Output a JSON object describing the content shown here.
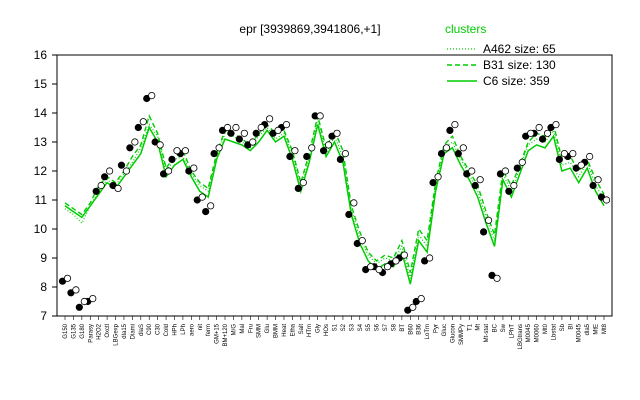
{
  "chart_data": {
    "type": "line",
    "title": "epr [3939869,3941806,+1]",
    "xlabel": "",
    "ylabel": "",
    "ylim": [
      7,
      16
    ],
    "yticks": [
      7,
      8,
      9,
      10,
      11,
      12,
      13,
      14,
      15,
      16
    ],
    "legend": {
      "title": "clusters",
      "placement": "top-right",
      "entries": [
        {
          "label": "A462 size: 65",
          "style": "dotted"
        },
        {
          "label": "B31 size: 130",
          "style": "dashed"
        },
        {
          "label": "C6 size: 359",
          "style": "solid"
        }
      ]
    },
    "line_color": "#00cc00",
    "x_tick_labels": [
      "G150",
      "G135",
      "G180",
      "Parasy",
      "H2O2",
      "Oxctl",
      "LBGexp",
      "dla15",
      "Diami",
      "dlaS",
      "C90",
      "C30",
      "Cold",
      "HPh",
      "LPh",
      "aero",
      "nit",
      "ferm",
      "GM+15",
      "BM+120",
      "M/G",
      "Mal",
      "Fru",
      "SMM",
      "Glu",
      "BMM",
      "Heat",
      "Etha",
      "Salt",
      "HTm",
      "Gly",
      "HOs",
      "S1",
      "S2",
      "S3",
      "S4",
      "S5",
      "S6",
      "S7",
      "S8",
      "BT",
      "B60",
      "B36",
      "LoTm",
      "Pyr",
      "Gluc",
      "Glucon",
      "SMMPy",
      "T1",
      "Mt",
      "Mt-stat",
      "BC",
      "Sw",
      "LPhT",
      "LBGtrans",
      "M0045",
      "M0060",
      "Mt0",
      "Lbstat",
      "Sb",
      "BI",
      "M0045",
      "dla5",
      "MtE",
      "Mt8"
    ],
    "series": [
      {
        "name": "A462 size: 65",
        "values": [
          10.7,
          10.5,
          10.2,
          10.8,
          11.3,
          11.7,
          11.5,
          11.9,
          12.3,
          12.8,
          13.6,
          13.2,
          12.0,
          12.4,
          12.5,
          11.9,
          11.5,
          11.3,
          12.5,
          13.3,
          13.2,
          13.0,
          12.8,
          13.2,
          13.5,
          13.1,
          13.3,
          12.6,
          11.5,
          12.4,
          13.8,
          12.6,
          13.2,
          12.5,
          10.7,
          9.7,
          9.1,
          8.8,
          9.0,
          8.9,
          9.4,
          8.3,
          9.8,
          9.4,
          11.5,
          12.8,
          13.0,
          12.4,
          11.9,
          11.3,
          10.4,
          9.6,
          11.9,
          11.3,
          12.1,
          12.9,
          13.1,
          13.0,
          13.4,
          12.2,
          12.3,
          11.8,
          12.3,
          11.5,
          11.0
        ]
      },
      {
        "name": "B31 size: 130",
        "values": [
          10.9,
          10.7,
          10.5,
          10.9,
          11.5,
          11.8,
          11.6,
          12.0,
          12.5,
          12.9,
          13.9,
          13.3,
          12.1,
          12.5,
          12.7,
          12.0,
          11.6,
          11.4,
          12.6,
          13.4,
          13.3,
          13.1,
          12.9,
          13.3,
          13.6,
          13.3,
          13.4,
          12.7,
          11.6,
          12.6,
          13.9,
          12.8,
          13.4,
          12.7,
          10.8,
          9.9,
          9.2,
          8.9,
          9.1,
          9.0,
          9.6,
          8.5,
          10.0,
          9.6,
          11.6,
          12.9,
          13.2,
          12.5,
          12.0,
          11.5,
          10.6,
          9.8,
          12.0,
          11.5,
          12.2,
          13.0,
          13.3,
          13.2,
          13.6,
          12.4,
          12.5,
          12.0,
          12.4,
          11.7,
          11.2
        ]
      },
      {
        "name": "C6 size: 359",
        "values": [
          10.8,
          10.6,
          10.4,
          10.8,
          11.2,
          11.6,
          11.4,
          11.8,
          12.2,
          12.6,
          13.5,
          13.0,
          11.8,
          12.2,
          12.4,
          11.8,
          11.3,
          11.1,
          12.4,
          13.1,
          13.0,
          12.9,
          12.7,
          13.0,
          13.4,
          13.0,
          13.2,
          12.4,
          11.3,
          12.3,
          13.6,
          12.5,
          13.0,
          12.3,
          10.5,
          9.5,
          8.9,
          8.6,
          8.8,
          8.7,
          9.2,
          8.1,
          9.6,
          9.2,
          11.3,
          12.6,
          12.8,
          12.2,
          11.7,
          11.1,
          10.2,
          9.4,
          11.7,
          11.1,
          11.9,
          12.7,
          12.9,
          12.8,
          13.2,
          12.0,
          12.1,
          11.6,
          12.1,
          11.3,
          10.8
        ]
      }
    ],
    "points": [
      [
        8.2,
        7.8,
        7.3,
        7.5,
        11.3,
        11.8,
        11.5,
        12.2,
        12.8,
        13.5,
        14.5,
        13.0,
        11.9,
        12.4,
        12.6,
        12.0,
        11.0,
        10.6,
        12.6,
        13.4,
        13.3,
        13.1,
        12.9,
        13.3,
        13.6,
        13.3,
        13.5,
        12.5,
        11.4,
        12.5,
        13.9,
        12.7,
        13.2,
        12.4,
        10.5,
        9.5,
        8.6,
        8.7,
        8.5,
        8.8,
        9.0,
        7.2,
        7.5,
        8.9,
        11.6,
        12.6,
        13.4,
        12.6,
        11.9,
        11.5,
        9.9,
        8.4,
        11.9,
        11.3,
        12.1,
        13.2,
        13.3,
        13.1,
        13.5,
        12.4,
        12.5,
        12.1,
        12.3,
        11.5,
        11.1
      ],
      [
        8.3,
        7.9,
        7.5,
        7.6,
        11.5,
        12.0,
        11.4,
        12.0,
        13.0,
        13.7,
        14.6,
        12.9,
        12.0,
        12.7,
        12.7,
        12.1,
        11.1,
        10.8,
        12.8,
        13.5,
        13.5,
        13.3,
        13.0,
        13.5,
        13.8,
        13.4,
        13.6,
        12.7,
        11.6,
        12.8,
        13.9,
        12.9,
        13.3,
        12.6,
        10.9,
        9.6,
        8.7,
        8.6,
        8.7,
        8.9,
        9.1,
        7.3,
        7.6,
        9.0,
        11.8,
        12.8,
        13.6,
        12.8,
        12.0,
        11.7,
        10.3,
        8.3,
        12.0,
        11.5,
        12.3,
        13.3,
        13.5,
        13.3,
        13.6,
        12.6,
        12.6,
        12.2,
        12.5,
        11.7,
        11.0
      ]
    ]
  }
}
